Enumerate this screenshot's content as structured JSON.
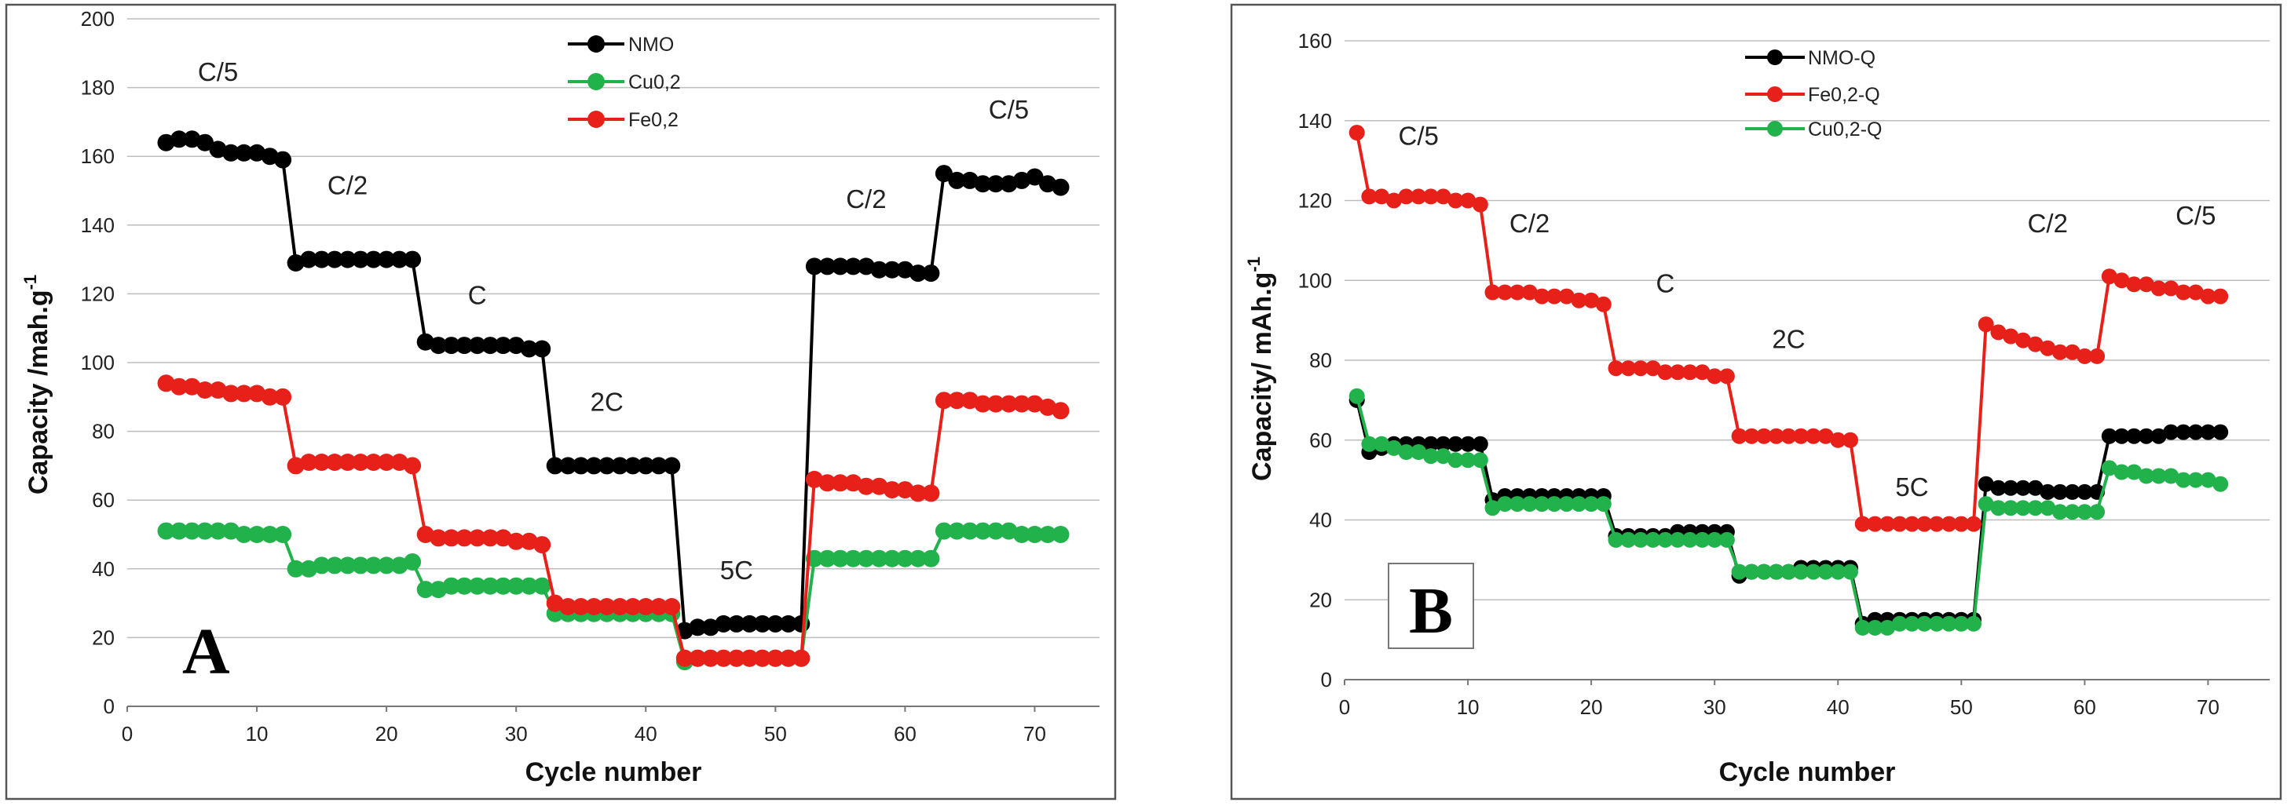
{
  "colors": {
    "NMO": "#000000",
    "Cu": "#22b24c",
    "Fe": "#e8201a",
    "frame": "#555555",
    "grid": "#bdbdbd"
  },
  "chart_data": [
    {
      "type": "line",
      "panel_label": "A",
      "title": "",
      "xlabel": "Cycle number",
      "ylabel": "Capacity /mah.g",
      "ylabel_superscript": "-1",
      "xlim": [
        0,
        75
      ],
      "ylim": [
        0,
        200
      ],
      "xticks": [
        "0",
        "10",
        "20",
        "30",
        "40",
        "50",
        "60",
        "70"
      ],
      "yticks": [
        "0",
        "20",
        "40",
        "60",
        "80",
        "100",
        "120",
        "140",
        "160",
        "180",
        "200"
      ],
      "x_start": 3,
      "x_step": 1,
      "legend": [
        "NMO",
        "Cu0,2",
        "Fe0,2"
      ],
      "annotations": [
        {
          "text": "C/5",
          "x": 7,
          "y": 182
        },
        {
          "text": "C/2",
          "x": 17,
          "y": 149
        },
        {
          "text": "C",
          "x": 27,
          "y": 117
        },
        {
          "text": "2C",
          "x": 37,
          "y": 86
        },
        {
          "text": "5C",
          "x": 47,
          "y": 37
        },
        {
          "text": "C/2",
          "x": 57,
          "y": 145
        },
        {
          "text": "C/5",
          "x": 68,
          "y": 171
        }
      ],
      "series": [
        {
          "name": "NMO",
          "color_key": "NMO",
          "values": [
            164,
            165,
            165,
            164,
            162,
            161,
            161,
            161,
            160,
            159,
            129,
            130,
            130,
            130,
            130,
            130,
            130,
            130,
            130,
            130,
            106,
            105,
            105,
            105,
            105,
            105,
            105,
            105,
            104,
            104,
            70,
            70,
            70,
            70,
            70,
            70,
            70,
            70,
            70,
            70,
            22,
            23,
            23,
            24,
            24,
            24,
            24,
            24,
            24,
            24,
            128,
            128,
            128,
            128,
            128,
            127,
            127,
            127,
            126,
            126,
            155,
            153,
            153,
            152,
            152,
            152,
            153,
            154,
            152,
            151
          ]
        },
        {
          "name": "Cu0,2",
          "color_key": "Cu",
          "values": [
            51,
            51,
            51,
            51,
            51,
            51,
            50,
            50,
            50,
            50,
            40,
            40,
            41,
            41,
            41,
            41,
            41,
            41,
            41,
            42,
            34,
            34,
            35,
            35,
            35,
            35,
            35,
            35,
            35,
            35,
            27,
            27,
            27,
            27,
            27,
            27,
            27,
            27,
            27,
            27,
            13,
            14,
            14,
            14,
            14,
            14,
            14,
            14,
            14,
            14,
            43,
            43,
            43,
            43,
            43,
            43,
            43,
            43,
            43,
            43,
            51,
            51,
            51,
            51,
            51,
            51,
            50,
            50,
            50,
            50
          ]
        },
        {
          "name": "Fe0,2",
          "color_key": "Fe",
          "values": [
            94,
            93,
            93,
            92,
            92,
            91,
            91,
            91,
            90,
            90,
            70,
            71,
            71,
            71,
            71,
            71,
            71,
            71,
            71,
            70,
            50,
            49,
            49,
            49,
            49,
            49,
            49,
            48,
            48,
            47,
            30,
            29,
            29,
            29,
            29,
            29,
            29,
            29,
            29,
            29,
            14,
            14,
            14,
            14,
            14,
            14,
            14,
            14,
            14,
            14,
            66,
            65,
            65,
            65,
            64,
            64,
            63,
            63,
            62,
            62,
            89,
            89,
            89,
            88,
            88,
            88,
            88,
            88,
            87,
            86
          ]
        }
      ]
    },
    {
      "type": "line",
      "panel_label": "B",
      "title": "",
      "xlabel": "Cycle number",
      "ylabel": "Capacity/ mAh.g",
      "ylabel_superscript": "-1",
      "xlim": [
        0,
        75
      ],
      "ylim": [
        0,
        160
      ],
      "xticks": [
        "0",
        "10",
        "20",
        "30",
        "40",
        "50",
        "60",
        "70"
      ],
      "yticks": [
        "0",
        "20",
        "40",
        "60",
        "80",
        "100",
        "120",
        "140",
        "160"
      ],
      "x_start": 1,
      "x_step": 1,
      "legend": [
        "NMO-Q",
        "Fe0,2-Q",
        "Cu0,2-Q"
      ],
      "annotations": [
        {
          "text": "C/5",
          "x": 6,
          "y": 134
        },
        {
          "text": "C/2",
          "x": 15,
          "y": 112
        },
        {
          "text": "C",
          "x": 26,
          "y": 97
        },
        {
          "text": "2C",
          "x": 36,
          "y": 83
        },
        {
          "text": "5C",
          "x": 46,
          "y": 46
        },
        {
          "text": "C/2",
          "x": 57,
          "y": 112
        },
        {
          "text": "C/5",
          "x": 69,
          "y": 114
        }
      ],
      "series": [
        {
          "name": "NMO-Q",
          "color_key": "NMO",
          "values": [
            70,
            57,
            58,
            59,
            59,
            59,
            59,
            59,
            59,
            59,
            59,
            45,
            46,
            46,
            46,
            46,
            46,
            46,
            46,
            46,
            46,
            36,
            36,
            36,
            36,
            36,
            37,
            37,
            37,
            37,
            37,
            26,
            27,
            27,
            27,
            27,
            28,
            28,
            28,
            28,
            28,
            14,
            15,
            15,
            15,
            15,
            15,
            15,
            15,
            15,
            15,
            49,
            48,
            48,
            48,
            48,
            47,
            47,
            47,
            47,
            47,
            61,
            61,
            61,
            61,
            61,
            62,
            62,
            62,
            62,
            62
          ]
        },
        {
          "name": "Fe0,2-Q",
          "color_key": "Fe",
          "values": [
            137,
            121,
            121,
            120,
            121,
            121,
            121,
            121,
            120,
            120,
            119,
            97,
            97,
            97,
            97,
            96,
            96,
            96,
            95,
            95,
            94,
            78,
            78,
            78,
            78,
            77,
            77,
            77,
            77,
            76,
            76,
            61,
            61,
            61,
            61,
            61,
            61,
            61,
            61,
            60,
            60,
            39,
            39,
            39,
            39,
            39,
            39,
            39,
            39,
            39,
            39,
            89,
            87,
            86,
            85,
            84,
            83,
            82,
            82,
            81,
            81,
            101,
            100,
            99,
            99,
            98,
            98,
            97,
            97,
            96,
            96
          ]
        },
        {
          "name": "Cu0,2-Q",
          "color_key": "Cu",
          "values": [
            71,
            59,
            59,
            58,
            57,
            57,
            56,
            56,
            55,
            55,
            55,
            43,
            44,
            44,
            44,
            44,
            44,
            44,
            44,
            44,
            44,
            35,
            35,
            35,
            35,
            35,
            35,
            35,
            35,
            35,
            35,
            27,
            27,
            27,
            27,
            27,
            27,
            27,
            27,
            27,
            27,
            13,
            13,
            13,
            14,
            14,
            14,
            14,
            14,
            14,
            14,
            44,
            43,
            43,
            43,
            43,
            43,
            42,
            42,
            42,
            42,
            53,
            52,
            52,
            51,
            51,
            51,
            50,
            50,
            50,
            49
          ]
        }
      ]
    }
  ]
}
